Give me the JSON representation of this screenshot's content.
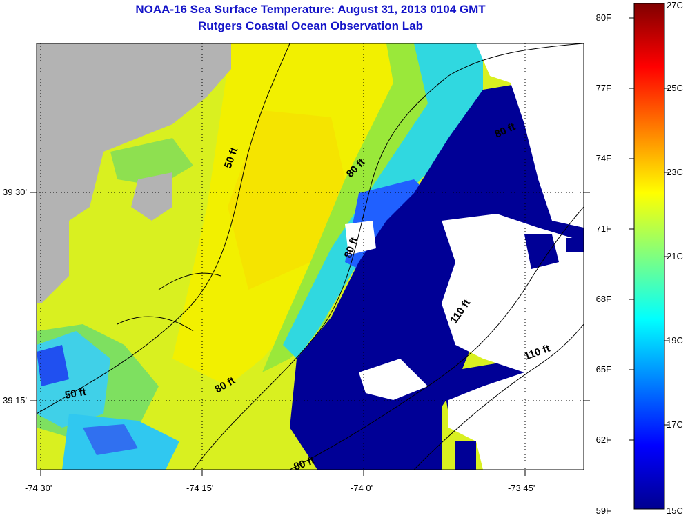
{
  "title": "NOAA-16 Sea Surface Temperature:  August 31, 2013 0104 GMT",
  "subtitle": "Rutgers Coastal Ocean Observation Lab",
  "x_ticks": [
    "-74 30'",
    "-74 15'",
    "-74 0'",
    "-73 45'"
  ],
  "y_ticks": [
    "39 30'",
    "39 15'"
  ],
  "contour_labels": [
    "50 ft",
    "50 ft",
    "80 ft",
    "80 ft",
    "80 ft",
    "80 ft",
    "80 ft",
    "110 ft",
    "110 ft"
  ],
  "colorbar": {
    "fahrenheit": [
      "80F",
      "77F",
      "74F",
      "71F",
      "68F",
      "65F",
      "62F",
      "59F"
    ],
    "celsius": [
      "27C",
      "25C",
      "23C",
      "21C",
      "19C",
      "17C",
      "15C"
    ],
    "range_c": [
      15,
      27
    ]
  },
  "colors": {
    "land": "#b3b3b3",
    "no_data": "#ffffff",
    "title_text": "#1414c8"
  }
}
